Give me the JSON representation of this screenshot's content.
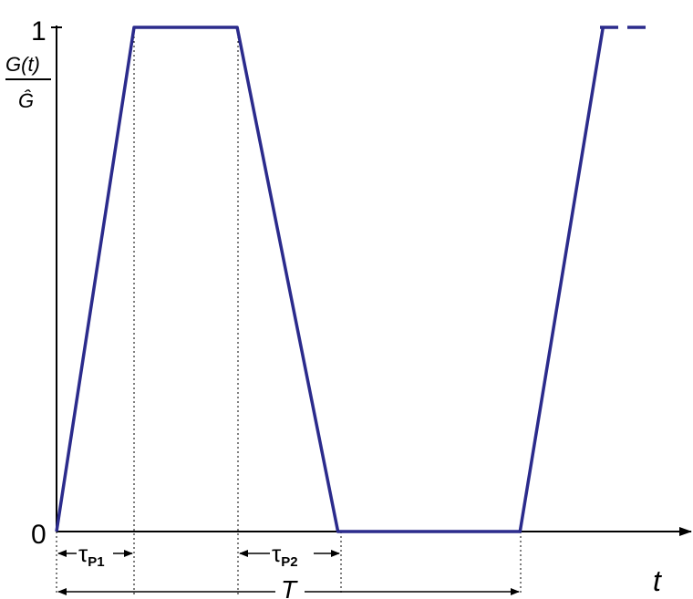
{
  "chart_data": {
    "type": "line",
    "x_label": "t",
    "y_label": {
      "numerator": "G(t)",
      "denominator": "Ĝ"
    },
    "y_ticks": [
      "0",
      "1"
    ],
    "series": [
      {
        "x": [
          0,
          1,
          2.33,
          3.63,
          5.98,
          7.05
        ],
        "y": [
          0,
          1,
          1,
          0,
          0,
          1
        ]
      }
    ],
    "extension_dashed": true,
    "ylim": [
      0,
      1
    ],
    "intervals": [
      {
        "label": "τ",
        "subscript": "P1"
      },
      {
        "label": "τ",
        "subscript": "P2"
      },
      {
        "label": "T",
        "subscript": ""
      }
    ],
    "line_color": "#2b2b8c"
  }
}
